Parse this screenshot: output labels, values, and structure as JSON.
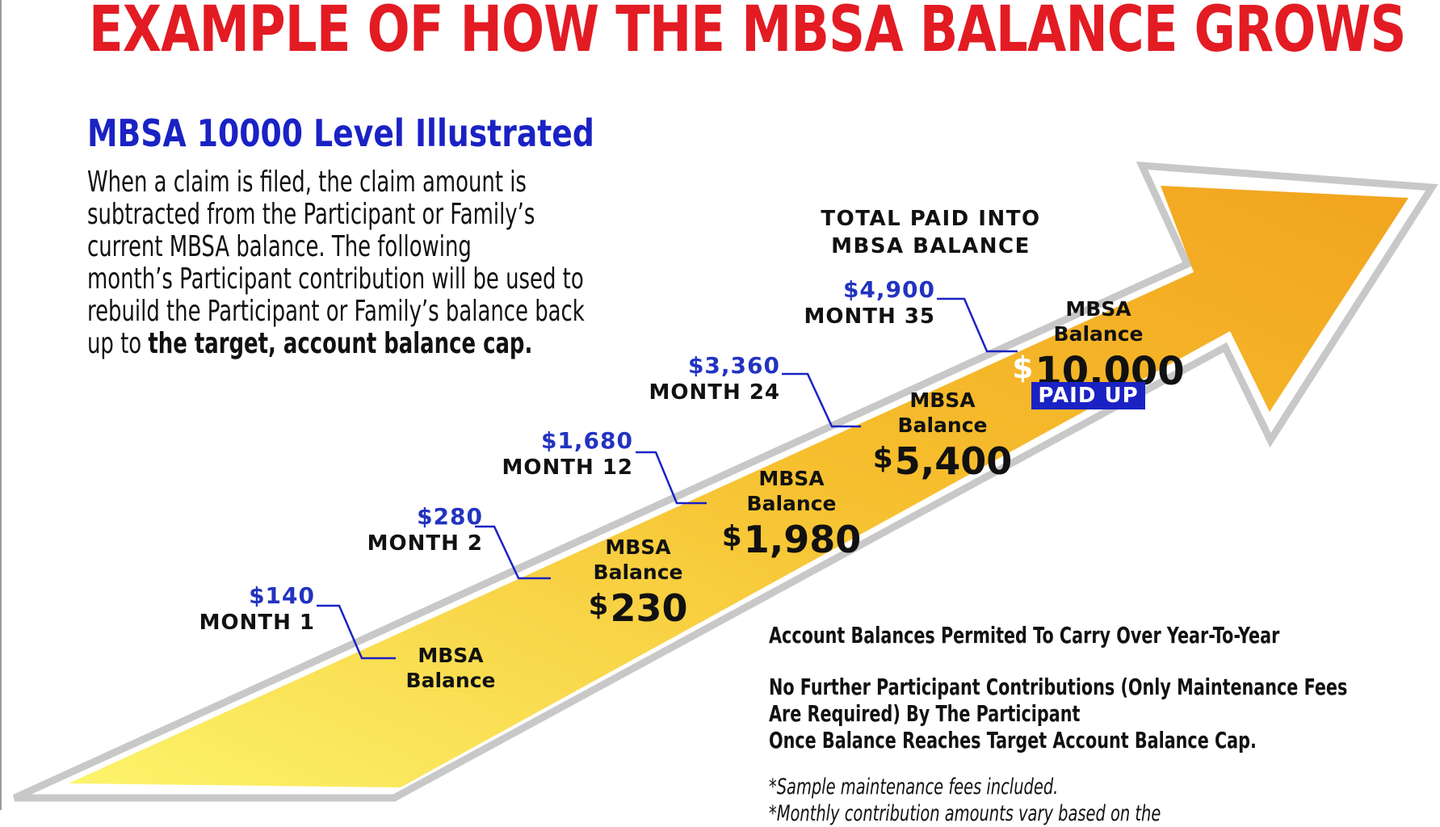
{
  "title": "EXAMPLE OF HOW THE MBSA BALANCE GROWS",
  "subtitle": "MBSA 10000 Level Illustrated",
  "intro": {
    "lines": [
      "When a claim is filed, the claim amount is",
      "subtracted from the Participant or Family’s",
      "current MBSA  balance. The following",
      "month’s Participant contribution will be used to",
      "rebuild the Participant or Family’s balance back"
    ],
    "last_prefix": "up to ",
    "last_bold": "the target, account balance cap."
  },
  "total_label": [
    "TOTAL PAID INTO",
    "MBSA BALANCE"
  ],
  "milestones": [
    {
      "amount": "$140",
      "month": "MONTH 1"
    },
    {
      "amount": "$280",
      "month": "MONTH 2"
    },
    {
      "amount": "$1,680",
      "month": "MONTH 12"
    },
    {
      "amount": "$3,360",
      "month": "MONTH 24"
    },
    {
      "amount": "$4,900",
      "month": "MONTH 35"
    }
  ],
  "balance_label_1": "MBSA",
  "balance_label_2": "Balance",
  "balances": [
    {
      "currency": "",
      "value": ""
    },
    {
      "currency": "$",
      "value": "230"
    },
    {
      "currency": "$",
      "value": "1,980"
    },
    {
      "currency": "$",
      "value": "5,400"
    },
    {
      "currency": "$",
      "value": "10,000"
    }
  ],
  "paid_up": "PAID UP",
  "notes": [
    [
      "Account Balances Permited To Carry Over Year-To-Year"
    ],
    [
      "No Further Participant Contributions (Only Maintenance Fees",
      "Are Required) By The Participant",
      "Once Balance Reaches Target Account Balance Cap."
    ]
  ],
  "fine_print": [
    "*Sample maintenance fees included.",
    "*Monthly contribution amounts vary based on the"
  ],
  "colors": {
    "title": "#e31b23",
    "subtitle": "#1a22c4",
    "amount": "#2233c0",
    "arrow_light": "#fcf46c",
    "arrow_dark": "#f2a41f",
    "arrow_outline": "#c8c8c8",
    "paid_up_bg": "#1a22c4"
  }
}
